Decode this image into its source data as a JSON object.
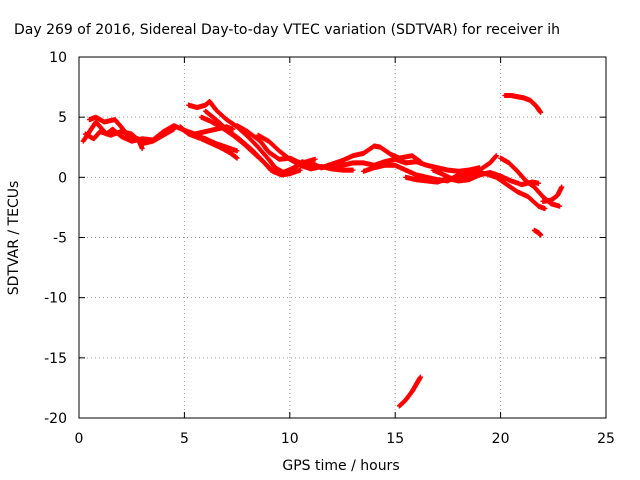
{
  "chart_data": {
    "type": "scatter",
    "title": "Day 269 of 2016, Sidereal Day-to-day VTEC variation (SDTVAR) for receiver ih",
    "xlabel": "GPS time / hours",
    "ylabel": "SDTVAR / TECUs",
    "xlim": [
      0,
      25
    ],
    "ylim": [
      -20,
      10
    ],
    "x_ticks": [
      0,
      5,
      10,
      15,
      20,
      25
    ],
    "y_ticks": [
      -20,
      -15,
      -10,
      -5,
      0,
      5,
      10
    ],
    "x_tick_labels": [
      "0",
      "5",
      "10",
      "15",
      "20",
      "25"
    ],
    "y_tick_labels": [
      "-20",
      "-15",
      "-10",
      "-5",
      "0",
      "5",
      "10"
    ],
    "grid": true,
    "point_color": "#ff0000",
    "series": [
      {
        "points": [
          [
            0.2,
            3.0
          ],
          [
            0.5,
            3.8
          ],
          [
            0.8,
            4.6
          ],
          [
            1.0,
            4.2
          ],
          [
            1.3,
            3.6
          ],
          [
            1.6,
            4.0
          ],
          [
            2.0,
            3.4
          ],
          [
            2.5,
            3.0
          ],
          [
            3.0,
            3.2
          ],
          [
            3.5,
            3.1
          ],
          [
            4.0,
            3.8
          ],
          [
            4.5,
            4.3
          ],
          [
            5.0,
            3.9
          ],
          [
            5.5,
            3.6
          ],
          [
            6.0,
            3.8
          ],
          [
            6.5,
            4.0
          ],
          [
            7.0,
            4.2
          ],
          [
            7.3,
            4.0
          ]
        ]
      },
      {
        "points": [
          [
            0.3,
            3.6
          ],
          [
            0.7,
            3.2
          ],
          [
            1.0,
            3.8
          ],
          [
            1.5,
            3.5
          ],
          [
            2.0,
            3.8
          ],
          [
            2.5,
            3.6
          ],
          [
            3.0,
            2.8
          ],
          [
            3.5,
            3.0
          ],
          [
            4.0,
            3.5
          ],
          [
            4.5,
            4.0
          ]
        ]
      },
      {
        "points": [
          [
            0.5,
            4.8
          ],
          [
            0.8,
            5.0
          ],
          [
            1.2,
            4.6
          ],
          [
            1.7,
            4.8
          ],
          [
            2.0,
            4.2
          ],
          [
            2.3,
            3.5
          ],
          [
            2.8,
            3.2
          ],
          [
            3.0,
            2.4
          ]
        ]
      },
      {
        "points": [
          [
            4.8,
            4.2
          ],
          [
            5.2,
            3.6
          ],
          [
            5.8,
            3.2
          ],
          [
            6.3,
            2.8
          ],
          [
            6.8,
            2.4
          ],
          [
            7.2,
            2.0
          ],
          [
            7.5,
            1.6
          ]
        ]
      },
      {
        "points": [
          [
            5.0,
            3.9
          ],
          [
            5.5,
            3.5
          ],
          [
            6.0,
            3.2
          ],
          [
            6.5,
            2.8
          ],
          [
            7.0,
            2.5
          ],
          [
            7.5,
            2.2
          ]
        ]
      },
      {
        "points": [
          [
            5.2,
            6.0
          ],
          [
            5.6,
            5.8
          ],
          [
            6.0,
            6.0
          ],
          [
            6.2,
            6.3
          ],
          [
            6.5,
            5.6
          ],
          [
            7.0,
            4.8
          ],
          [
            7.5,
            4.2
          ],
          [
            8.0,
            3.4
          ],
          [
            8.5,
            2.5
          ],
          [
            9.0,
            1.5
          ],
          [
            9.3,
            0.8
          ],
          [
            9.7,
            0.4
          ],
          [
            10.2,
            0.8
          ],
          [
            10.6,
            1.3
          ],
          [
            11.0,
            1.0
          ]
        ]
      },
      {
        "points": [
          [
            5.8,
            5.0
          ],
          [
            6.2,
            4.7
          ],
          [
            6.8,
            4.1
          ],
          [
            7.3,
            3.5
          ],
          [
            7.8,
            2.8
          ],
          [
            8.3,
            2.0
          ],
          [
            8.8,
            1.2
          ],
          [
            9.2,
            0.5
          ],
          [
            9.6,
            0.2
          ],
          [
            10.0,
            0.3
          ],
          [
            10.5,
            0.6
          ]
        ]
      },
      {
        "points": [
          [
            6.0,
            5.5
          ],
          [
            6.5,
            4.8
          ],
          [
            7.0,
            4.0
          ],
          [
            7.6,
            3.2
          ],
          [
            8.2,
            2.3
          ],
          [
            8.7,
            1.4
          ],
          [
            9.1,
            0.6
          ],
          [
            9.5,
            0.3
          ],
          [
            10.0,
            0.6
          ],
          [
            10.6,
            1.2
          ],
          [
            11.2,
            1.5
          ]
        ]
      },
      {
        "points": [
          [
            7.5,
            4.3
          ],
          [
            8.0,
            3.8
          ],
          [
            8.6,
            3.0
          ],
          [
            9.0,
            2.1
          ],
          [
            9.5,
            1.5
          ],
          [
            10.0,
            1.6
          ],
          [
            10.5,
            1.2
          ],
          [
            11.0,
            1.0
          ],
          [
            11.5,
            0.8
          ],
          [
            12.0,
            1.0
          ]
        ]
      },
      {
        "points": [
          [
            8.5,
            3.5
          ],
          [
            9.0,
            3.0
          ],
          [
            9.5,
            2.2
          ],
          [
            10.0,
            1.5
          ],
          [
            10.5,
            1.0
          ],
          [
            11.0,
            0.7
          ],
          [
            11.5,
            0.9
          ],
          [
            12.0,
            0.7
          ],
          [
            12.5,
            0.6
          ],
          [
            13.0,
            0.6
          ]
        ]
      },
      {
        "points": [
          [
            11.0,
            1.2
          ],
          [
            11.5,
            0.8
          ],
          [
            12.0,
            1.1
          ],
          [
            12.5,
            1.4
          ],
          [
            13.0,
            1.8
          ],
          [
            13.5,
            2.0
          ],
          [
            14.0,
            2.6
          ],
          [
            14.3,
            2.5
          ],
          [
            14.8,
            1.9
          ],
          [
            15.2,
            1.6
          ],
          [
            15.8,
            1.8
          ],
          [
            16.2,
            1.3
          ]
        ]
      },
      {
        "points": [
          [
            12.0,
            0.7
          ],
          [
            12.5,
            1.0
          ],
          [
            13.0,
            1.2
          ],
          [
            13.5,
            1.2
          ],
          [
            14.0,
            1.0
          ],
          [
            14.5,
            1.3
          ],
          [
            15.0,
            1.5
          ],
          [
            15.5,
            1.2
          ],
          [
            16.0,
            1.3
          ],
          [
            16.5,
            1.0
          ],
          [
            17.0,
            0.8
          ],
          [
            17.5,
            0.6
          ],
          [
            18.0,
            0.5
          ],
          [
            18.5,
            0.6
          ],
          [
            19.0,
            0.8
          ]
        ]
      },
      {
        "points": [
          [
            13.5,
            0.5
          ],
          [
            14.0,
            0.8
          ],
          [
            14.5,
            1.0
          ],
          [
            15.0,
            1.0
          ],
          [
            15.5,
            0.6
          ],
          [
            16.0,
            0.2
          ],
          [
            16.5,
            0.0
          ],
          [
            17.0,
            -0.2
          ],
          [
            17.5,
            -0.3
          ],
          [
            18.0,
            0.2
          ],
          [
            18.5,
            0.4
          ],
          [
            19.0,
            0.6
          ],
          [
            19.5,
            1.2
          ],
          [
            19.8,
            1.8
          ]
        ]
      },
      {
        "points": [
          [
            15.5,
            0.0
          ],
          [
            16.0,
            -0.2
          ],
          [
            16.5,
            -0.3
          ],
          [
            17.0,
            -0.4
          ],
          [
            17.5,
            -0.1
          ],
          [
            18.0,
            -0.3
          ],
          [
            18.5,
            -0.2
          ],
          [
            19.0,
            0.2
          ],
          [
            19.5,
            0.4
          ],
          [
            20.0,
            0.1
          ],
          [
            20.5,
            -0.3
          ],
          [
            21.0,
            -0.6
          ],
          [
            21.5,
            -0.4
          ],
          [
            21.8,
            -0.5
          ]
        ]
      },
      {
        "points": [
          [
            16.8,
            0.6
          ],
          [
            17.2,
            0.3
          ],
          [
            17.8,
            -0.2
          ],
          [
            18.3,
            0.0
          ],
          [
            18.8,
            0.4
          ],
          [
            19.3,
            0.3
          ],
          [
            19.8,
            0.0
          ],
          [
            20.3,
            -0.6
          ],
          [
            20.8,
            -1.2
          ],
          [
            21.3,
            -1.6
          ],
          [
            21.8,
            -2.4
          ],
          [
            22.1,
            -2.6
          ]
        ]
      },
      {
        "points": [
          [
            20.0,
            1.6
          ],
          [
            20.4,
            1.2
          ],
          [
            20.8,
            0.5
          ],
          [
            21.2,
            -0.3
          ],
          [
            21.6,
            -0.8
          ],
          [
            22.0,
            -1.6
          ],
          [
            22.4,
            -2.2
          ],
          [
            22.8,
            -2.4
          ]
        ]
      },
      {
        "points": [
          [
            22.0,
            -2.0
          ],
          [
            22.4,
            -1.9
          ],
          [
            22.7,
            -1.5
          ],
          [
            22.9,
            -0.8
          ]
        ]
      },
      {
        "points": [
          [
            20.2,
            6.8
          ],
          [
            20.5,
            6.8
          ],
          [
            20.8,
            6.7
          ],
          [
            21.1,
            6.6
          ],
          [
            21.4,
            6.4
          ],
          [
            21.7,
            5.9
          ],
          [
            21.9,
            5.4
          ]
        ]
      },
      {
        "points": [
          [
            21.6,
            -4.4
          ],
          [
            21.8,
            -4.6
          ],
          [
            21.9,
            -4.8
          ]
        ]
      },
      {
        "points": [
          [
            15.2,
            -19.0
          ],
          [
            15.5,
            -18.5
          ],
          [
            15.8,
            -17.8
          ],
          [
            16.0,
            -17.2
          ],
          [
            16.2,
            -16.6
          ]
        ]
      }
    ]
  }
}
